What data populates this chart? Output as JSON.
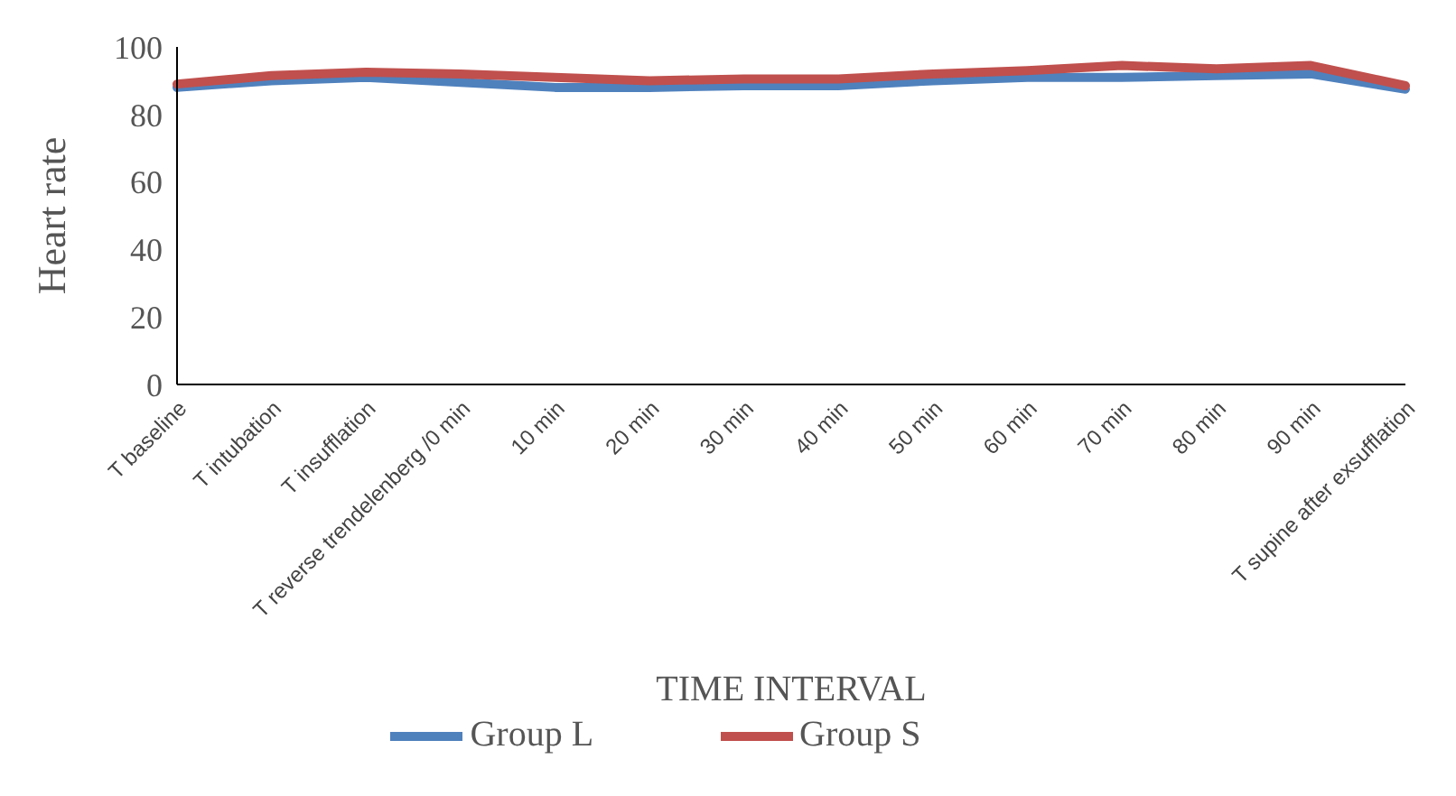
{
  "chart_data": {
    "type": "line",
    "xlabel": "TIME INTERVAL",
    "ylabel": "Heart rate",
    "categories": [
      "T baseline",
      "T intubation",
      "T insufflation",
      "T reverse trendelenberg /0 min",
      "10 min",
      "20 min",
      "30 min",
      "40 min",
      "50 min",
      "60 min",
      "70 min",
      "80 min",
      "90 min",
      "T supine after exsufflation"
    ],
    "series": [
      {
        "name": "Group L",
        "color": "#4f81bd",
        "values": [
          88,
          90,
          91,
          89.5,
          88,
          88,
          88.5,
          88.5,
          90,
          91,
          91,
          91.5,
          92,
          87.5
        ]
      },
      {
        "name": "Group S",
        "color": "#c0504d",
        "values": [
          89,
          91.5,
          92.5,
          92,
          91,
          90,
          90.5,
          90.5,
          92,
          93,
          94.5,
          93.5,
          94.5,
          88.5
        ]
      }
    ],
    "ylim": [
      0,
      100
    ],
    "yticks": [
      0,
      20,
      40,
      60,
      80,
      100
    ],
    "grid": false,
    "legend": "bottom",
    "marker": "none",
    "line_style": "solid"
  }
}
